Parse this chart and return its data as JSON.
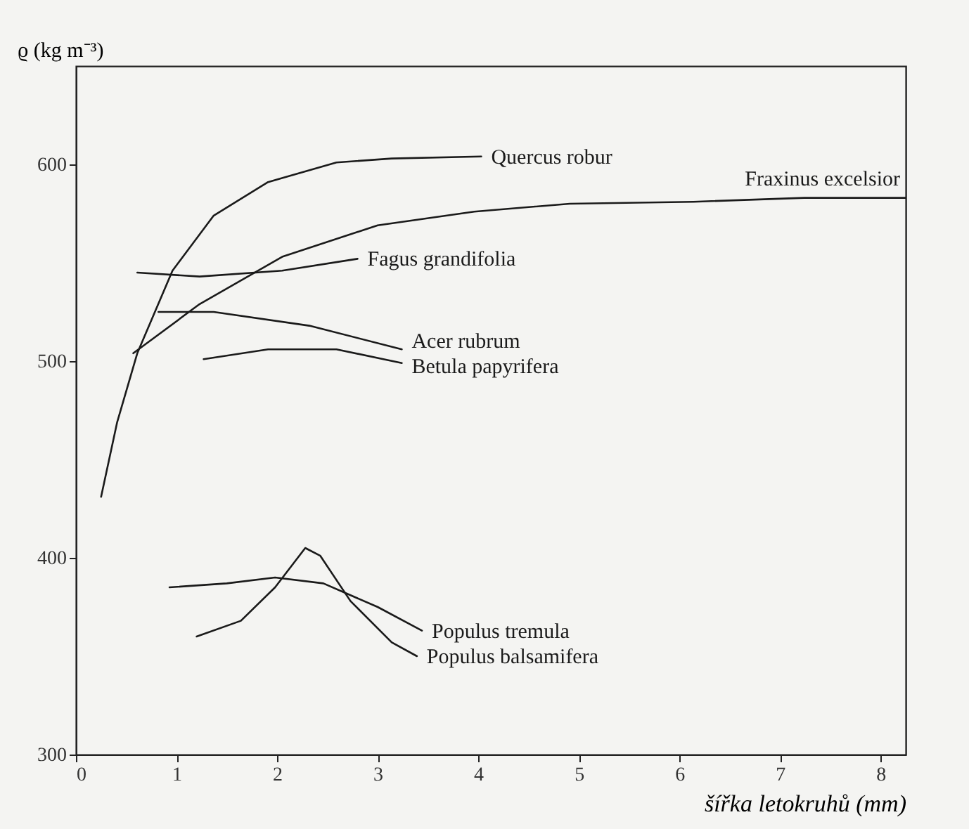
{
  "chart_data": {
    "type": "line",
    "xlabel": "šířka letokruhů (mm)",
    "ylabel": "ϱ (kg m⁻³)",
    "xlim": [
      0,
      8.25
    ],
    "ylim": [
      300,
      650
    ],
    "xticks": [
      0,
      1,
      2,
      3,
      4,
      5,
      6,
      7,
      8
    ],
    "yticks": [
      300,
      400,
      500,
      600
    ],
    "grid": false,
    "marker": "none",
    "line_style": "solid",
    "series": [
      {
        "name": "Quercus robur",
        "color": "#1a1a1a",
        "x": [
          0.25,
          0.41,
          0.61,
          0.96,
          1.37,
          1.91,
          2.59,
          3.14,
          4.03
        ],
        "values": [
          431,
          469,
          504,
          546,
          574,
          591,
          601,
          603,
          604
        ]
      },
      {
        "name": "Fraxinus excelsior",
        "color": "#1a1a1a",
        "x": [
          0.57,
          1.23,
          2.05,
          3.0,
          3.96,
          4.91,
          6.14,
          7.24,
          8.25
        ],
        "values": [
          504,
          529,
          553,
          569,
          576,
          580,
          581,
          583,
          583
        ]
      },
      {
        "name": "Fagus grandifolia",
        "color": "#1a1a1a",
        "x": [
          0.61,
          1.23,
          2.05,
          2.8
        ],
        "values": [
          545,
          543,
          546,
          552
        ]
      },
      {
        "name": "Acer rubrum",
        "color": "#1a1a1a",
        "x": [
          0.82,
          1.37,
          2.32,
          3.24
        ],
        "values": [
          525,
          525,
          518,
          506
        ]
      },
      {
        "name": "Betula papyrifera",
        "color": "#1a1a1a",
        "x": [
          1.27,
          1.91,
          2.59,
          3.24
        ],
        "values": [
          501,
          506,
          506,
          499
        ]
      },
      {
        "name": "Populus tremula",
        "color": "#1a1a1a",
        "x": [
          0.93,
          1.5,
          1.98,
          2.46,
          3.0,
          3.44
        ],
        "values": [
          385,
          387,
          390,
          387,
          375,
          363
        ]
      },
      {
        "name": "Populus balsamifera",
        "color": "#1a1a1a",
        "x": [
          1.2,
          1.64,
          1.98,
          2.28,
          2.43,
          2.73,
          3.14,
          3.39
        ],
        "values": [
          360,
          368,
          385,
          405,
          401,
          378,
          357,
          350
        ]
      }
    ]
  }
}
